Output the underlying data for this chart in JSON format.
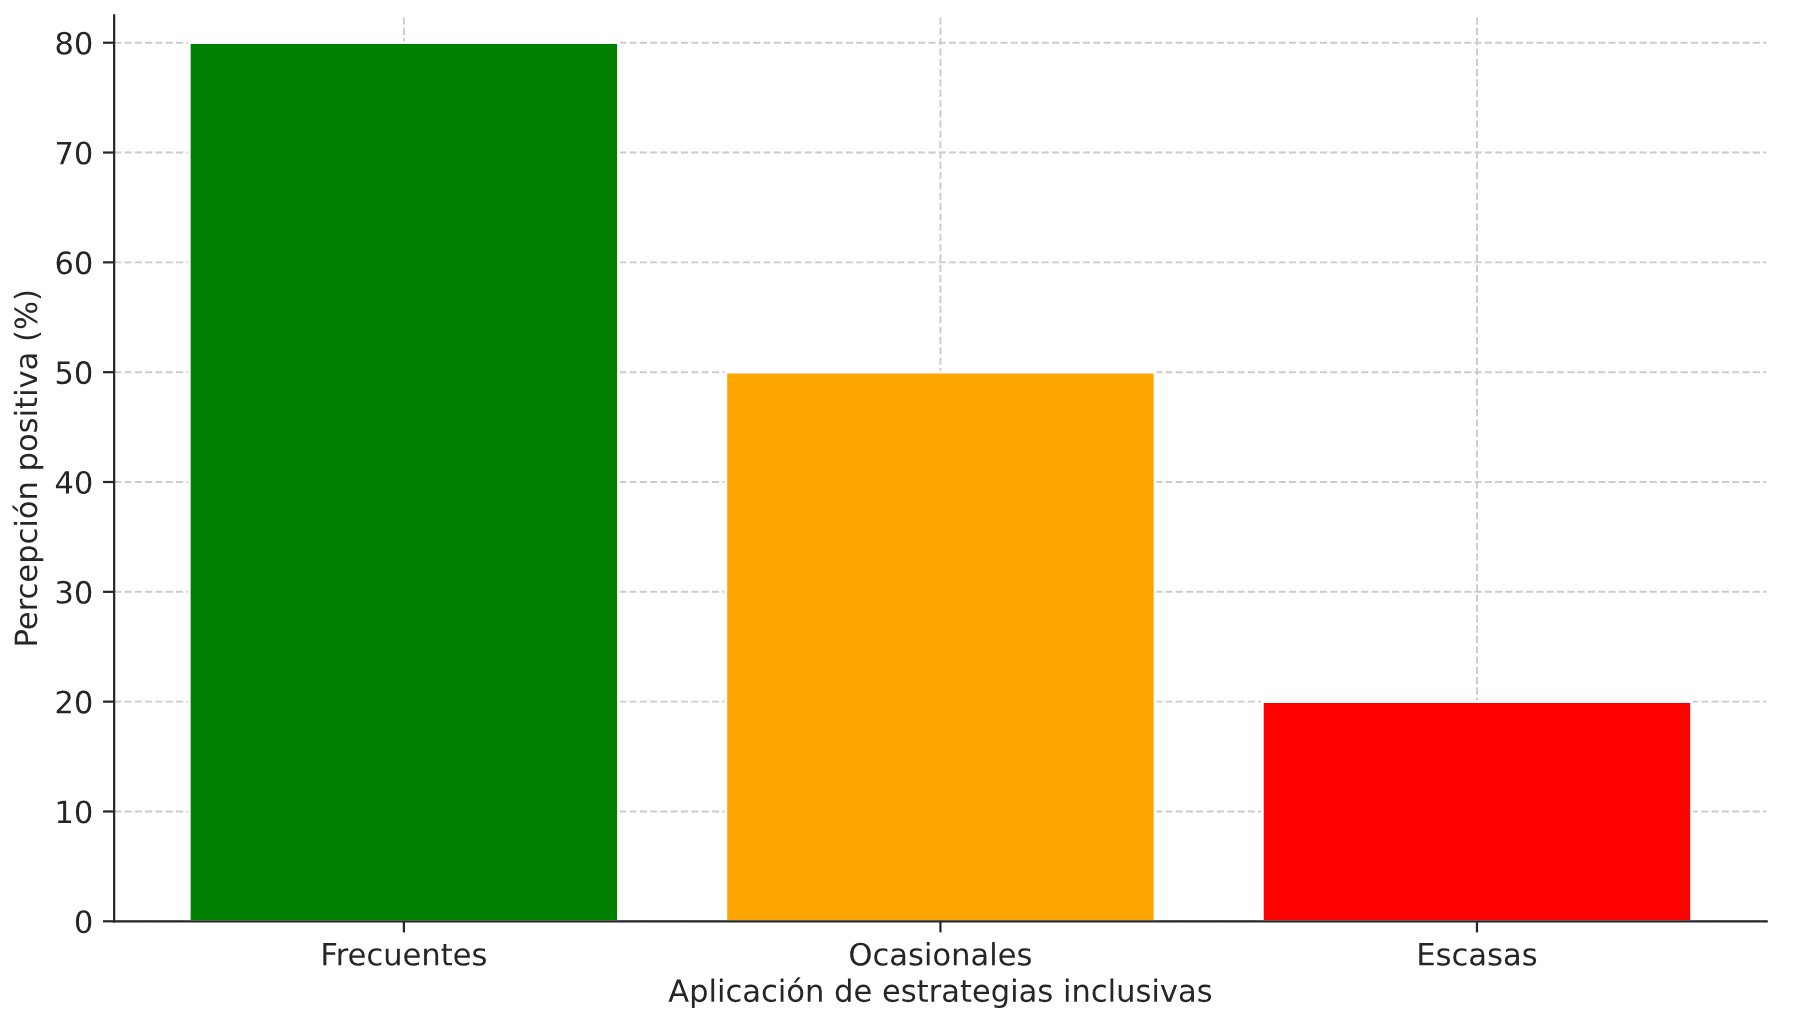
{
  "chart_data": {
    "type": "bar",
    "xlabel": "Aplicación de estrategias inclusivas",
    "ylabel": "Percepción positiva (%)",
    "categories": [
      "Frecuentes",
      "Ocasionales",
      "Escasas"
    ],
    "values": [
      80,
      50,
      20
    ],
    "colors": [
      "#008000",
      "#ffa500",
      "#ff0000"
    ],
    "ylim": [
      0,
      82.5
    ],
    "yticks": [
      0,
      10,
      20,
      30,
      40,
      50,
      60,
      70,
      80
    ],
    "grid": true
  }
}
